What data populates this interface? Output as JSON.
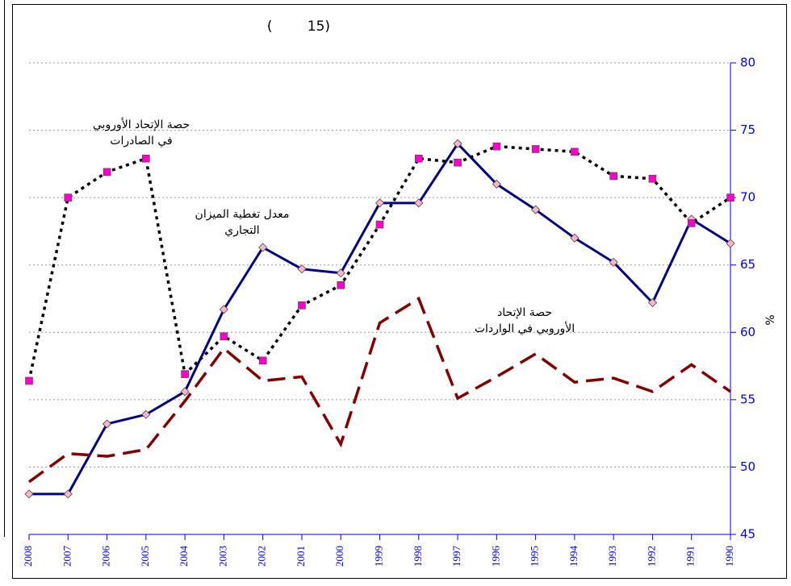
{
  "chart_data": {
    "type": "line",
    "title": "(        15)",
    "y_label": "%",
    "categories": [
      "2008",
      "2007",
      "2006",
      "2005",
      "2004",
      "2003",
      "2002",
      "2001",
      "2000",
      "1999",
      "1998",
      "1997",
      "1996",
      "1995",
      "1994",
      "1993",
      "1992",
      "1991",
      "1990"
    ],
    "ylim": [
      45,
      80
    ],
    "yticks": [
      45,
      50,
      55,
      60,
      65,
      70,
      75,
      80
    ],
    "grid": true,
    "series": [
      {
        "color": "#000080",
        "style": "solid",
        "marker": "diamond",
        "marker_color": "#ffb6c8",
        "values": [
          48.0,
          48.0,
          53.2,
          53.9,
          55.6,
          61.7,
          66.3,
          64.7,
          64.4,
          69.6,
          69.6,
          74.0,
          71.0,
          69.1,
          67.0,
          65.2,
          62.2,
          68.4,
          66.6
        ]
      },
      {
        "color": "#000000",
        "style": "dotted",
        "marker": "square",
        "marker_color": "#ff00cc",
        "values": [
          56.4,
          70.0,
          71.9,
          72.9,
          56.9,
          59.7,
          57.9,
          62.0,
          63.5,
          68.0,
          72.9,
          72.6,
          73.8,
          73.6,
          73.4,
          71.6,
          71.4,
          68.1,
          70.0
        ]
      },
      {
        "color": "#800000",
        "style": "dashed",
        "marker": "none",
        "values": [
          48.9,
          51.0,
          50.8,
          51.3,
          54.9,
          58.8,
          56.4,
          56.7,
          51.7,
          60.7,
          62.5,
          55.1,
          56.7,
          58.4,
          56.3,
          56.6,
          55.6,
          57.6,
          55.6
        ]
      }
    ],
    "annotations": [
      {
        "lines": [
          "حصة الإتحاد الأوروبي",
          "في الصادرات"
        ]
      },
      {
        "lines": [
          "معدل تغطية الميزان",
          "التجاري"
        ]
      },
      {
        "lines": [
          "حصة الإتحاد",
          "الأوروبي في الواردات"
        ]
      }
    ]
  }
}
